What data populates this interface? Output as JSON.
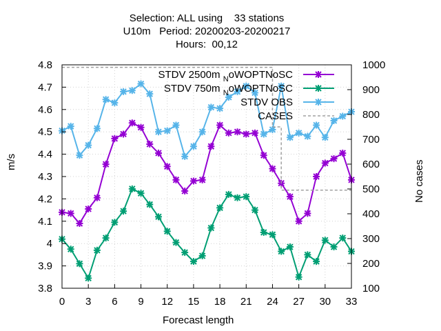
{
  "chart_data": {
    "type": "line",
    "title": [
      "Selection: ALL using    33 stations",
      "U10m   Period: 20200203-20200217",
      "Hours:  00,12"
    ],
    "xlabel": "Forecast length",
    "ylabel": "m/s",
    "y2label": "No cases",
    "xlim": [
      0,
      33
    ],
    "ylim": [
      3.8,
      4.8
    ],
    "y2lim": [
      100,
      1000
    ],
    "xticks": [
      "0",
      "3",
      "6",
      "9",
      "12",
      "15",
      "18",
      "21",
      "24",
      "27",
      "30",
      "33"
    ],
    "yticks": [
      "3.8",
      "3.9",
      "4",
      "4.1",
      "4.2",
      "4.3",
      "4.4",
      "4.5",
      "4.6",
      "4.7",
      "4.8"
    ],
    "y2ticks": [
      "100",
      "200",
      "300",
      "400",
      "500",
      "600",
      "700",
      "800",
      "900",
      "1000"
    ],
    "grid": true,
    "legend_position": "top-right",
    "x": [
      0,
      1,
      2,
      3,
      4,
      5,
      6,
      7,
      8,
      9,
      10,
      11,
      12,
      13,
      14,
      15,
      16,
      17,
      18,
      19,
      20,
      21,
      22,
      23,
      24,
      25,
      26,
      27,
      28,
      29,
      30,
      31,
      32,
      33
    ],
    "series": [
      {
        "name": "STDV 2500m",
        "name_sub": "N",
        "name_rest": "oWOPTNoSC",
        "color": "#9400d3",
        "axis": "y",
        "values": [
          4.14,
          4.135,
          4.09,
          4.155,
          4.205,
          4.355,
          4.47,
          4.49,
          4.54,
          4.52,
          4.445,
          4.405,
          4.345,
          4.285,
          4.235,
          4.28,
          4.285,
          4.435,
          4.53,
          4.495,
          4.5,
          4.49,
          4.495,
          4.395,
          4.335,
          4.27,
          4.21,
          4.1,
          4.135,
          4.3,
          4.36,
          4.38,
          4.405,
          4.285
        ]
      },
      {
        "name": "STDV 750m",
        "name_sub": "N",
        "name_rest": "oWOPTNoSC",
        "color": "#009e73",
        "axis": "y",
        "values": [
          4.02,
          3.975,
          3.91,
          3.845,
          3.97,
          4.025,
          4.095,
          4.145,
          4.245,
          4.225,
          4.175,
          4.12,
          4.055,
          4.005,
          3.96,
          3.92,
          3.945,
          4.07,
          4.16,
          4.22,
          4.205,
          4.21,
          4.15,
          4.05,
          4.04,
          3.965,
          3.985,
          3.85,
          3.95,
          3.92,
          4.015,
          3.985,
          4.025,
          3.965
        ]
      },
      {
        "name": "STDV OBS",
        "color": "#56b4e9",
        "axis": "y",
        "values": [
          4.505,
          4.525,
          4.395,
          4.44,
          4.515,
          4.645,
          4.63,
          4.68,
          4.685,
          4.715,
          4.67,
          4.5,
          4.505,
          4.53,
          4.39,
          4.435,
          4.5,
          4.61,
          4.605,
          4.655,
          4.68,
          4.705,
          4.675,
          4.49,
          4.51,
          4.705,
          4.475,
          4.495,
          4.48,
          4.53,
          4.475,
          4.55,
          4.57,
          4.59
        ]
      },
      {
        "name": "CASES",
        "color": "#a0a0a0",
        "axis": "y2",
        "values": [
          990,
          990,
          990,
          990,
          990,
          990,
          990,
          990,
          990,
          990,
          990,
          990,
          990,
          990,
          990,
          990,
          990,
          990,
          990,
          990,
          990,
          990,
          990,
          990,
          750,
          495,
          495,
          495,
          495,
          495,
          495,
          495,
          495,
          495
        ]
      }
    ]
  }
}
